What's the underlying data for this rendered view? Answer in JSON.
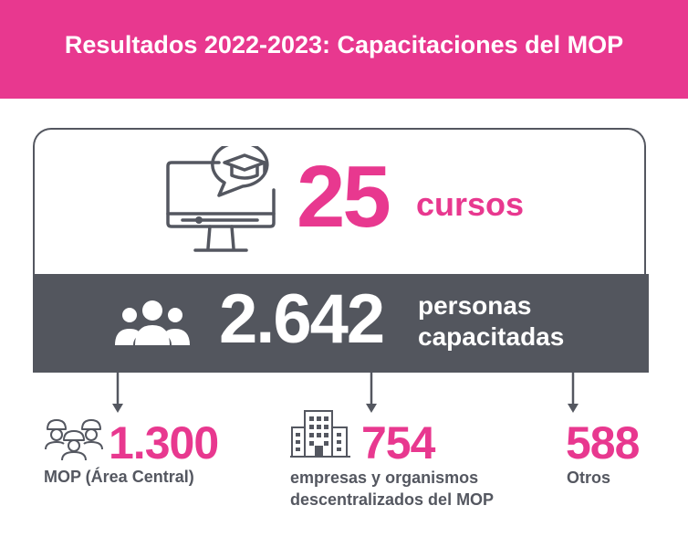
{
  "header": {
    "title": "Resultados 2022-2023: Capacitaciones del MOP"
  },
  "courses": {
    "value": "25",
    "label": "cursos"
  },
  "people": {
    "value": "2.642",
    "label_line1": "personas",
    "label_line2": "capacitadas"
  },
  "breakdown": [
    {
      "value": "1.300",
      "label_line1": "MOP (Área Central)",
      "icon": "workers-icon"
    },
    {
      "value": "754",
      "label_line1": "empresas y organismos",
      "label_line2": "descentralizados del MOP",
      "icon": "building-icon"
    },
    {
      "value": "588",
      "label_line1": "Otros"
    }
  ],
  "colors": {
    "accent": "#e8388f",
    "dark": "#53565e"
  }
}
